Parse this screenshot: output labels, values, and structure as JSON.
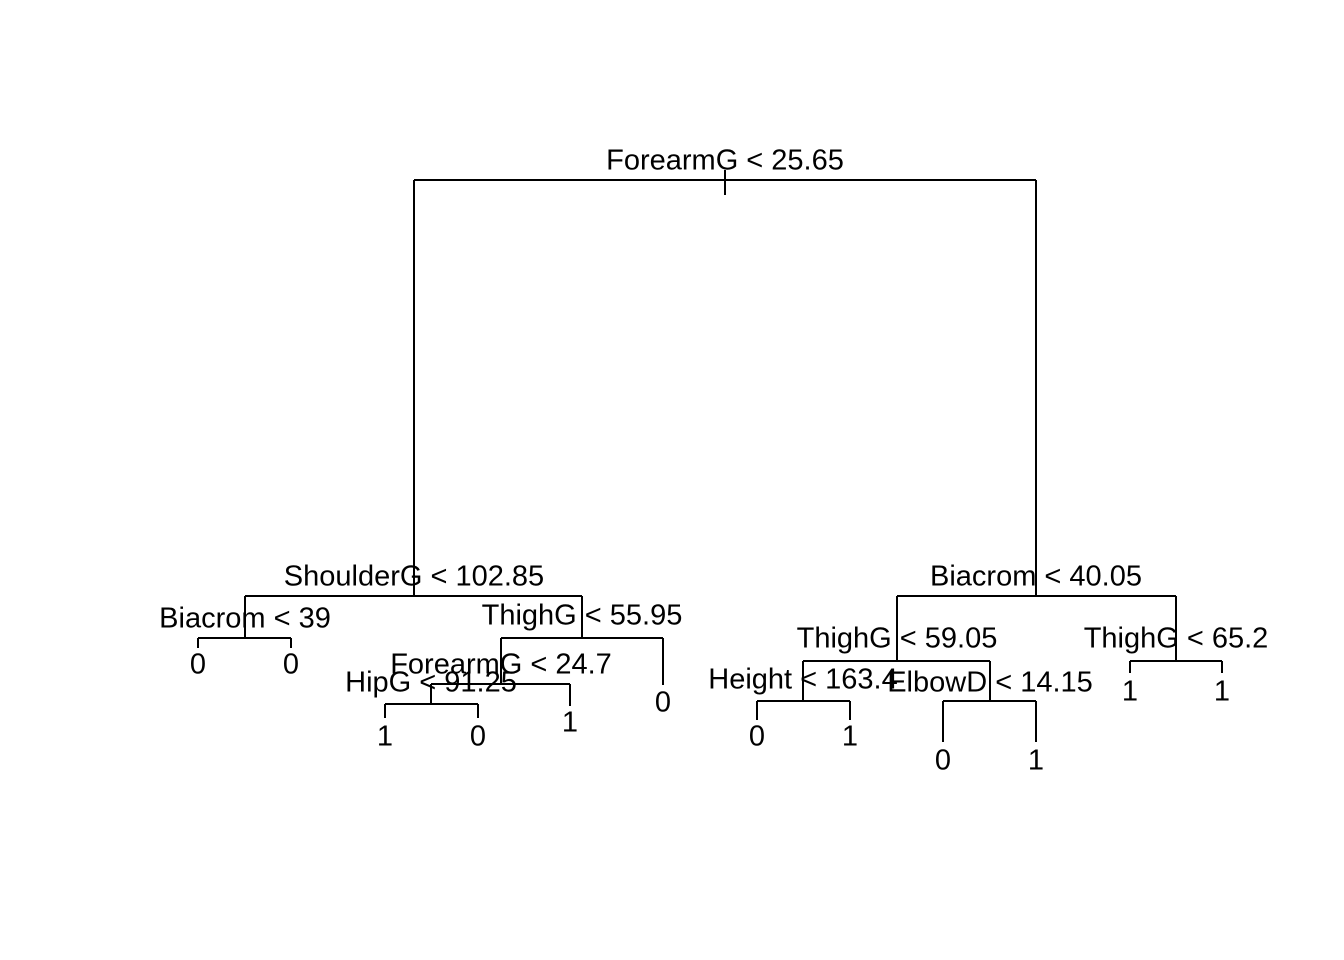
{
  "splits": [
    {
      "label": "ForearmG < 25.65"
    },
    {
      "label": "ShoulderG < 102.85"
    },
    {
      "label": "Biacrom < 39"
    },
    {
      "label": "ThighG < 55.95"
    },
    {
      "label": "ForearmG < 24.7"
    },
    {
      "label": "HipG < 91.25"
    },
    {
      "label": "Biacrom < 40.05"
    },
    {
      "label": "ThighG < 59.05"
    },
    {
      "label": "Height < 163.4"
    },
    {
      "label": "ElbowD < 14.15"
    },
    {
      "label": "ThighG < 65.2"
    }
  ],
  "leaves": [
    "0",
    "0",
    "1",
    "0",
    "1",
    "0",
    "0",
    "1",
    "0",
    "1",
    "1",
    "1"
  ]
}
